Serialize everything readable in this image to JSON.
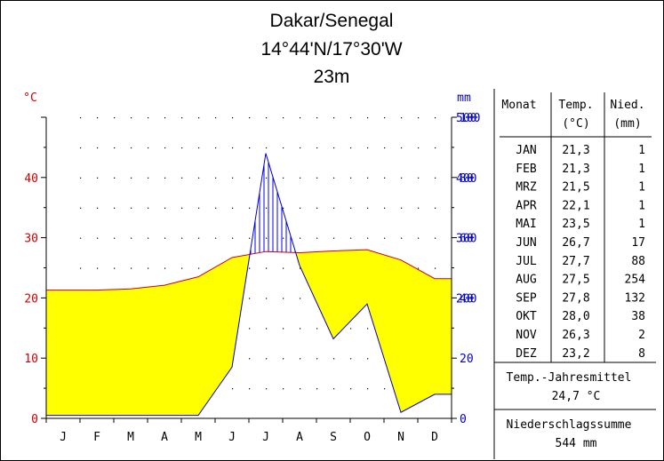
{
  "station": {
    "name": "Dakar/Senegal",
    "coords": "14°44'N/17°30'W",
    "elevation": "23m"
  },
  "axes": {
    "left_unit": "°C",
    "right_unit": "mm",
    "left_ticks": [
      0,
      10,
      20,
      30,
      40
    ],
    "right_ticks_lower": [
      0,
      20,
      40,
      60,
      80,
      100
    ],
    "right_ticks_upper": [
      200,
      300,
      400,
      500
    ]
  },
  "table": {
    "headers": {
      "month": "Monat",
      "temp_1": "Temp.",
      "temp_2": "(°C)",
      "precip_1": "Nied.",
      "precip_2": "(mm)"
    },
    "rows": [
      {
        "month": "JAN",
        "temp": "21,3",
        "precip": "1"
      },
      {
        "month": "FEB",
        "temp": "21,3",
        "precip": "1"
      },
      {
        "month": "MRZ",
        "temp": "21,5",
        "precip": "1"
      },
      {
        "month": "APR",
        "temp": "22,1",
        "precip": "1"
      },
      {
        "month": "MAI",
        "temp": "23,5",
        "precip": "1"
      },
      {
        "month": "JUN",
        "temp": "26,7",
        "precip": "17"
      },
      {
        "month": "JUL",
        "temp": "27,7",
        "precip": "88"
      },
      {
        "month": "AUG",
        "temp": "27,5",
        "precip": "254"
      },
      {
        "month": "SEP",
        "temp": "27,8",
        "precip": "132"
      },
      {
        "month": "OKT",
        "temp": "28,0",
        "precip": "38"
      },
      {
        "month": "NOV",
        "temp": "26,3",
        "precip": "2"
      },
      {
        "month": "DEZ",
        "temp": "23,2",
        "precip": "8"
      }
    ],
    "annual_temp_label": "Temp.-Jahresmittel",
    "annual_temp_value": "24,7 °C",
    "annual_precip_label": "Niederschlagssumme",
    "annual_precip_value": "544 mm"
  },
  "chart_data": {
    "type": "line",
    "title": "Dakar/Senegal",
    "categories": [
      "J",
      "F",
      "M",
      "A",
      "M",
      "J",
      "J",
      "A",
      "S",
      "O",
      "N",
      "D"
    ],
    "series": [
      {
        "values": [
          21.3,
          21.3,
          21.5,
          22.1,
          23.5,
          26.7,
          27.7,
          27.5,
          27.8,
          28.0,
          26.3,
          23.2
        ]
      },
      {
        "values": [
          1,
          1,
          1,
          1,
          1,
          17,
          88,
          254,
          132,
          38,
          2,
          8
        ]
      }
    ],
    "left_ylim": [
      0,
      50
    ],
    "right_ylim": [
      0,
      500
    ],
    "right_axis_scale": "0-100 mm at 20 mm per 10 °C, above 100 mm at 100 mm per 10 °C",
    "grid": true,
    "colors": {
      "temperature_fill": "#ffff00",
      "humid_fill": "#0000ff",
      "perhumid_fill": "#0000ff",
      "left_axis": "#cc0000",
      "right_axis": "#0000cc"
    }
  }
}
